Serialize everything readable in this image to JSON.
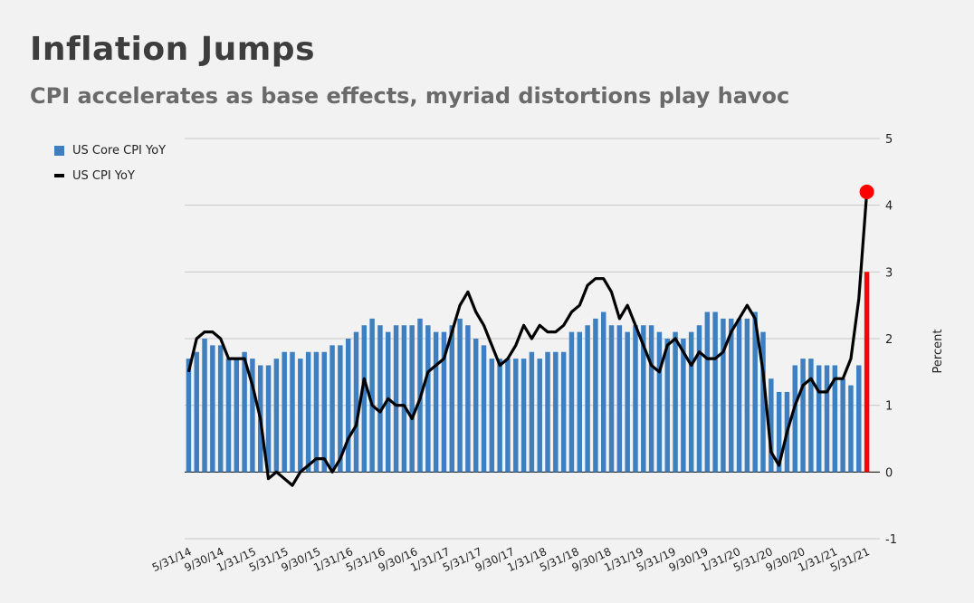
{
  "header": {
    "title": "Inflation Jumps",
    "subtitle": "CPI accelerates as base effects, myriad distortions play havoc"
  },
  "colors": {
    "bar": "#3d7fc1",
    "bar_highlight": "#ff0000",
    "line": "#000000",
    "grid": "#c8c8c8",
    "background": "#f2f2f2"
  },
  "chart_data": {
    "type": "bar",
    "title": "Inflation Jumps",
    "subtitle": "CPI accelerates as base effects, myriad distortions play havoc",
    "xlabel": "",
    "ylabel": "Percent",
    "ylim": [
      -1,
      5
    ],
    "yticks": [
      5,
      4,
      3,
      2,
      1,
      0,
      -1
    ],
    "y_axis_side": "right",
    "grid": true,
    "legend_position": "top-left",
    "x_tick_labels": [
      "5/31/14",
      "9/30/14",
      "1/31/15",
      "5/31/15",
      "9/30/15",
      "1/31/16",
      "5/31/16",
      "9/30/16",
      "1/31/17",
      "5/31/17",
      "9/30/17",
      "1/31/18",
      "5/31/18",
      "9/30/18",
      "1/31/19",
      "5/31/19",
      "9/30/19",
      "1/31/20",
      "5/31/20",
      "9/30/20",
      "1/31/21",
      "5/31/21"
    ],
    "x_start": "2014-05",
    "x_end": "2021-05",
    "series": [
      {
        "name": "US Core CPI YoY",
        "type": "bar",
        "values": [
          1.7,
          1.8,
          2.0,
          1.9,
          1.9,
          1.7,
          1.7,
          1.8,
          1.7,
          1.6,
          1.6,
          1.7,
          1.8,
          1.8,
          1.7,
          1.8,
          1.8,
          1.8,
          1.9,
          1.9,
          2.0,
          2.1,
          2.2,
          2.3,
          2.2,
          2.1,
          2.2,
          2.2,
          2.2,
          2.3,
          2.2,
          2.1,
          2.1,
          2.2,
          2.3,
          2.2,
          2.0,
          1.9,
          1.7,
          1.7,
          1.7,
          1.7,
          1.7,
          1.8,
          1.7,
          1.8,
          1.8,
          1.8,
          2.1,
          2.1,
          2.2,
          2.3,
          2.4,
          2.2,
          2.2,
          2.1,
          2.2,
          2.2,
          2.2,
          2.1,
          2.0,
          2.1,
          2.0,
          2.1,
          2.2,
          2.4,
          2.4,
          2.3,
          2.3,
          2.3,
          2.3,
          2.4,
          2.1,
          1.4,
          1.2,
          1.2,
          1.6,
          1.7,
          1.7,
          1.6,
          1.6,
          1.6,
          1.4,
          1.3,
          1.6,
          3.0
        ],
        "highlight_last": true
      },
      {
        "name": "US CPI YoY",
        "type": "line",
        "values": [
          1.5,
          2.0,
          2.1,
          2.1,
          2.0,
          1.7,
          1.7,
          1.7,
          1.3,
          0.8,
          -0.1,
          0.0,
          -0.1,
          -0.2,
          0.0,
          0.1,
          0.2,
          0.2,
          0.0,
          0.2,
          0.5,
          0.7,
          1.4,
          1.0,
          0.9,
          1.1,
          1.0,
          1.0,
          0.8,
          1.1,
          1.5,
          1.6,
          1.7,
          2.1,
          2.5,
          2.7,
          2.4,
          2.2,
          1.9,
          1.6,
          1.7,
          1.9,
          2.2,
          2.0,
          2.2,
          2.1,
          2.1,
          2.2,
          2.4,
          2.5,
          2.8,
          2.9,
          2.9,
          2.7,
          2.3,
          2.5,
          2.2,
          1.9,
          1.6,
          1.5,
          1.9,
          2.0,
          1.8,
          1.6,
          1.8,
          1.7,
          1.7,
          1.8,
          2.1,
          2.3,
          2.5,
          2.3,
          1.5,
          0.3,
          0.1,
          0.6,
          1.0,
          1.3,
          1.4,
          1.2,
          1.2,
          1.4,
          1.4,
          1.7,
          2.6,
          4.2
        ],
        "end_marker": true
      }
    ]
  }
}
